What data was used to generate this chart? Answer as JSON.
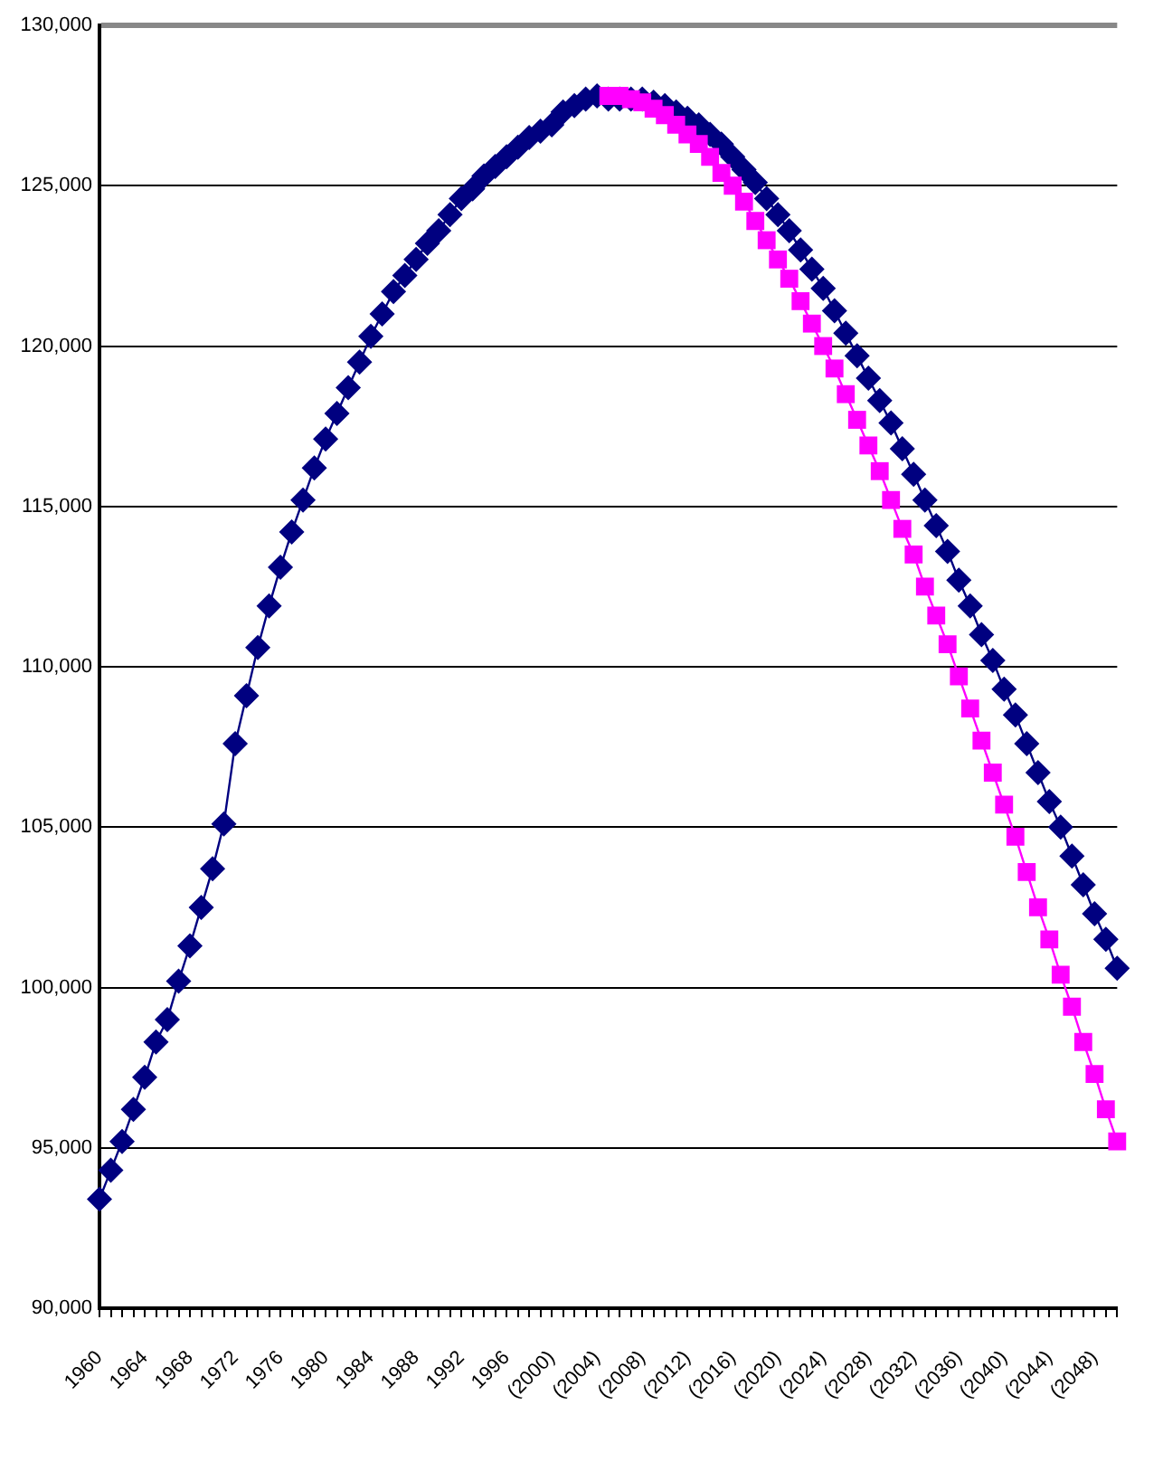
{
  "chart_data": {
    "type": "line",
    "categories": [
      "1960",
      null,
      null,
      null,
      "1964",
      null,
      null,
      null,
      "1968",
      null,
      null,
      null,
      "1972",
      null,
      null,
      null,
      "1976",
      null,
      null,
      null,
      "1980",
      null,
      null,
      null,
      "1984",
      null,
      null,
      null,
      "1988",
      null,
      null,
      null,
      "1992",
      null,
      null,
      null,
      "1996",
      null,
      null,
      null,
      "(2000)",
      null,
      null,
      null,
      "(2004)",
      null,
      null,
      null,
      "(2008)",
      null,
      null,
      null,
      "(2012)",
      null,
      null,
      null,
      "(2016)",
      null,
      null,
      null,
      "(2020)",
      null,
      null,
      null,
      "(2024)",
      null,
      null,
      null,
      "(2028)",
      null,
      null,
      null,
      "(2032)",
      null,
      null,
      null,
      "(2036)",
      null,
      null,
      null,
      "(2040)",
      null,
      null,
      null,
      "(2044)",
      null,
      null,
      null,
      "(2048)",
      null,
      null
    ],
    "series": [
      {
        "color": "#000080",
        "marker": "diamond",
        "values": [
          93400,
          94300,
          95200,
          96200,
          97200,
          98300,
          99000,
          100200,
          101300,
          102500,
          103700,
          105100,
          107600,
          109100,
          110600,
          111900,
          113100,
          114200,
          115200,
          116200,
          117100,
          117900,
          118700,
          119500,
          120300,
          121000,
          121700,
          122200,
          122700,
          123200,
          123600,
          124100,
          124600,
          124900,
          125300,
          125600,
          125900,
          126200,
          126500,
          126700,
          126900,
          127300,
          127500,
          127700,
          127800,
          127700,
          127700,
          127700,
          127700,
          127600,
          127500,
          127300,
          127100,
          126900,
          126600,
          126300,
          125900,
          125500,
          125100,
          124600,
          124100,
          123600,
          123000,
          122400,
          121800,
          121100,
          120400,
          119700,
          119000,
          118300,
          117600,
          116800,
          116000,
          115200,
          114400,
          113600,
          112700,
          111900,
          111000,
          110200,
          109300,
          108500,
          107600,
          106700,
          105800,
          105000,
          104100,
          103200,
          102300,
          101500,
          100600
        ]
      },
      {
        "color": "#ff00ff",
        "marker": "square",
        "values": [
          null,
          null,
          null,
          null,
          null,
          null,
          null,
          null,
          null,
          null,
          null,
          null,
          null,
          null,
          null,
          null,
          null,
          null,
          null,
          null,
          null,
          null,
          null,
          null,
          null,
          null,
          null,
          null,
          null,
          null,
          null,
          null,
          null,
          null,
          null,
          null,
          null,
          null,
          null,
          null,
          null,
          null,
          null,
          null,
          null,
          127800,
          127800,
          127700,
          127600,
          127400,
          127200,
          126900,
          126600,
          126300,
          125900,
          125400,
          125000,
          124500,
          123900,
          123300,
          122700,
          122100,
          121400,
          120700,
          120000,
          119300,
          118500,
          117700,
          116900,
          116100,
          115200,
          114300,
          113500,
          112500,
          111600,
          110700,
          109700,
          108700,
          107700,
          106700,
          105700,
          104700,
          103600,
          102500,
          101500,
          100400,
          99400,
          98300,
          97300,
          96200,
          95200
        ]
      }
    ],
    "ylim": [
      90000,
      130000
    ],
    "yticks": [
      {
        "value": 90000,
        "label": "90,000"
      },
      {
        "value": 95000,
        "label": "95,000"
      },
      {
        "value": 100000,
        "label": "100,000"
      },
      {
        "value": 105000,
        "label": "105,000"
      },
      {
        "value": 110000,
        "label": "110,000"
      },
      {
        "value": 115000,
        "label": "115,000"
      },
      {
        "value": 120000,
        "label": "120,000"
      },
      {
        "value": 125000,
        "label": "125,000"
      },
      {
        "value": 130000,
        "label": "130,000"
      }
    ],
    "grid": "y",
    "legend": false,
    "line_style": "solid"
  }
}
